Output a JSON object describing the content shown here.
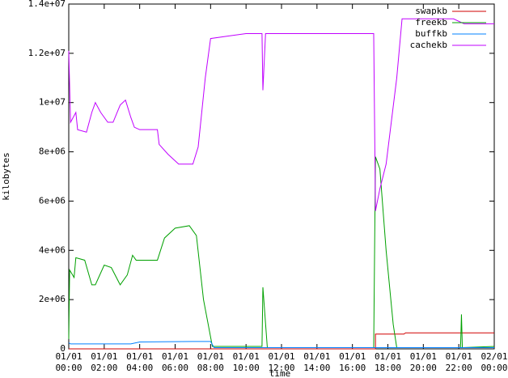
{
  "chart_data": {
    "type": "line",
    "xlabel": "time",
    "ylabel": "kilobytes",
    "xlim": [
      0,
      24
    ],
    "ylim": [
      0,
      14000000
    ],
    "xticks": [
      {
        "value": 0,
        "label": "01/01 00:00"
      },
      {
        "value": 2,
        "label": "01/01 02:00"
      },
      {
        "value": 4,
        "label": "01/01 04:00"
      },
      {
        "value": 6,
        "label": "01/01 06:00"
      },
      {
        "value": 8,
        "label": "01/01 08:00"
      },
      {
        "value": 10,
        "label": "01/01 10:00"
      },
      {
        "value": 12,
        "label": "01/01 12:00"
      },
      {
        "value": 14,
        "label": "01/01 14:00"
      },
      {
        "value": 16,
        "label": "01/01 16:00"
      },
      {
        "value": 18,
        "label": "01/01 18:00"
      },
      {
        "value": 20,
        "label": "01/01 20:00"
      },
      {
        "value": 22,
        "label": "01/01 22:00"
      },
      {
        "value": 24,
        "label": "02/01 00:00"
      }
    ],
    "yticks": [
      0,
      {
        "value": 2000000,
        "label": "2e+06"
      },
      {
        "value": 4000000,
        "label": "4e+06"
      },
      {
        "value": 6000000,
        "label": "6e+06"
      },
      {
        "value": 8000000,
        "label": "8e+06"
      },
      {
        "value": 10000000,
        "label": "1e+07"
      },
      {
        "value": 12000000,
        "label": "1.2e+07"
      },
      {
        "value": 14000000,
        "label": "1.4e+07"
      }
    ],
    "legend": "top-right",
    "series": [
      {
        "name": "swapkb",
        "color": "#d00000",
        "x": [
          0,
          17.3,
          17.3,
          18.9,
          19,
          24
        ],
        "values": [
          0,
          0,
          600000,
          600000,
          650000,
          650000
        ]
      },
      {
        "name": "freekb",
        "color": "#00a000",
        "x": [
          0,
          0.05,
          0.3,
          0.4,
          0.9,
          1.3,
          1.5,
          2.0,
          2.4,
          2.9,
          3.3,
          3.6,
          3.8,
          5.0,
          5.4,
          6.0,
          6.8,
          7.2,
          7.6,
          8.1,
          10.9,
          10.95,
          11.2,
          17.2,
          17.3,
          17.55,
          17.9,
          18.3,
          18.5,
          22.1,
          22.15,
          22.2,
          24
        ],
        "values": [
          400000,
          3200000,
          2900000,
          3700000,
          3600000,
          2600000,
          2600000,
          3400000,
          3300000,
          2600000,
          3000000,
          3800000,
          3600000,
          3600000,
          4500000,
          4900000,
          5000000,
          4600000,
          2000000,
          100000,
          100000,
          2500000,
          50000,
          50000,
          7800000,
          7300000,
          4000000,
          1000000,
          50000,
          50000,
          1400000,
          50000,
          100000
        ]
      },
      {
        "name": "buffkb",
        "color": "#0080ff",
        "x": [
          0,
          0.1,
          3.5,
          4,
          7,
          8,
          8.2,
          24
        ],
        "values": [
          250000,
          200000,
          200000,
          280000,
          300000,
          300000,
          50000,
          50000
        ]
      },
      {
        "name": "cachekb",
        "color": "#c000ff",
        "x": [
          0,
          0.1,
          0.4,
          0.5,
          1.0,
          1.3,
          1.5,
          1.8,
          2.2,
          2.5,
          2.9,
          3.2,
          3.5,
          3.7,
          4.0,
          5.0,
          5.1,
          5.6,
          6.2,
          7.0,
          7.3,
          7.7,
          8.0,
          9.0,
          10.0,
          10.9,
          10.95,
          11.1,
          12,
          17.2,
          17.3,
          17.55,
          17.9,
          18.5,
          18.8,
          21.7,
          22.3,
          24
        ],
        "values": [
          12100000,
          9200000,
          9600000,
          8900000,
          8800000,
          9600000,
          10000000,
          9600000,
          9200000,
          9200000,
          9900000,
          10100000,
          9400000,
          9000000,
          8900000,
          8900000,
          8300000,
          7900000,
          7500000,
          7500000,
          8200000,
          11000000,
          12600000,
          12700000,
          12800000,
          12800000,
          10500000,
          12800000,
          12800000,
          12800000,
          5600000,
          6500000,
          7500000,
          11000000,
          13400000,
          13400000,
          13200000,
          13200000
        ]
      }
    ]
  }
}
